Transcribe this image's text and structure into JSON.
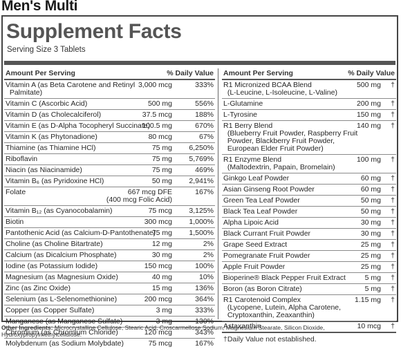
{
  "product_title": "Men's Multi",
  "panel": {
    "title": "Supplement Facts",
    "serving_size": "Serving Size 3 Tablets",
    "header": {
      "amount_per_serving": "Amount Per Serving",
      "daily_value": "% Daily Value"
    }
  },
  "left_rows": [
    {
      "name": "Vitamin A (as Beta Carotene and Retinyl\n  Palmitate)",
      "amount": "3,000 mcg",
      "dv": "333%"
    },
    {
      "name": "Vitamin C (Ascorbic Acid)",
      "amount": "500 mg",
      "dv": "556%"
    },
    {
      "name": "Vitamin D (as Cholecalciferol)",
      "amount": "37.5 mcg",
      "dv": "188%"
    },
    {
      "name": "Vitamin E (as D-Alpha Tocopheryl Succinate)",
      "amount": "100.5 mg",
      "dv": "670%"
    },
    {
      "name": "Vitamin K (as Phytonadione)",
      "amount": "80 mcg",
      "dv": "67%"
    },
    {
      "name": "Thiamine (as Thiamine HCl)",
      "amount": "75 mg",
      "dv": "6,250%"
    },
    {
      "name": "Riboflavin",
      "amount": "75 mg",
      "dv": "5,769%"
    },
    {
      "name": "Niacin (as Niacinamide)",
      "amount": "75 mg",
      "dv": "469%"
    },
    {
      "name": "Vitamin B₆ (as Pyridoxine HCl)",
      "amount": "50 mg",
      "dv": "2,941%"
    },
    {
      "name": "Folate",
      "amount": "667 mcg DFE\n(400 mcg Folic Acid)",
      "dv": "167%"
    },
    {
      "name": "Vitamin B₁₂ (as Cyanocobalamin)",
      "amount": "75 mcg",
      "dv": "3,125%"
    },
    {
      "name": "Biotin",
      "amount": "300 mcg",
      "dv": "1,000%"
    },
    {
      "name": "Pantothenic Acid (as Calcium-D-Pantothenate)",
      "amount": "75 mg",
      "dv": "1,500%"
    },
    {
      "name": "Choline (as Choline Bitartrate)",
      "amount": "12 mg",
      "dv": "2%"
    },
    {
      "name": "Calcium (as Dicalcium Phosphate)",
      "amount": "30 mg",
      "dv": "2%"
    },
    {
      "name": "Iodine (as Potassium Iodide)",
      "amount": "150 mcg",
      "dv": "100%"
    },
    {
      "name": "Magnesium (as Magnesium Oxide)",
      "amount": "40 mg",
      "dv": "10%"
    },
    {
      "name": "Zinc (as Zinc Oxide)",
      "amount": "15 mg",
      "dv": "136%"
    },
    {
      "name": "Selenium (as L-Selenomethionine)",
      "amount": "200 mcg",
      "dv": "364%"
    },
    {
      "name": "Copper (as Copper Sulfate)",
      "amount": "3 mg",
      "dv": "333%"
    },
    {
      "name": "Manganese (as Manganese Sulfate)",
      "amount": "3 mg",
      "dv": "130%"
    },
    {
      "name": "Chromium (as Chromium Chloride)",
      "amount": "120 mcg",
      "dv": "343%"
    },
    {
      "name": "Molybdenum (as Sodium Molybdate)",
      "amount": "75 mcg",
      "dv": "167%"
    }
  ],
  "right_rows": [
    {
      "name": "R1 Micronized BCAA Blend\n  (L-Leucine, L-Isoleucine, L-Valine)",
      "amount": "500 mg",
      "dv": "†"
    },
    {
      "name": "L-Glutamine",
      "amount": "200 mg",
      "dv": "†"
    },
    {
      "name": "L-Tyrosine",
      "amount": "150 mg",
      "dv": "†"
    },
    {
      "name": "R1 Berry Blend\n  (Blueberry Fruit Powder, Raspberry Fruit\n  Powder, Blackberry Fruit Powder,\n  European Elder Fruit Powder)",
      "amount": "140 mg",
      "dv": "†"
    },
    {
      "name": "R1 Enzyme Blend\n  (Maltodextrin, Papain, Bromelain)",
      "amount": "100 mg",
      "dv": "†"
    },
    {
      "name": "Ginkgo Leaf Powder",
      "amount": "60 mg",
      "dv": "†"
    },
    {
      "name": "Asian Ginseng Root Powder",
      "amount": "60 mg",
      "dv": "†"
    },
    {
      "name": "Green Tea Leaf Powder",
      "amount": "50 mg",
      "dv": "†"
    },
    {
      "name": "Black Tea Leaf Powder",
      "amount": "50 mg",
      "dv": "†"
    },
    {
      "name": "Alpha Lipoic Acid",
      "amount": "30 mg",
      "dv": "†"
    },
    {
      "name": "Black Currant Fruit Powder",
      "amount": "30 mg",
      "dv": "†"
    },
    {
      "name": "Grape Seed Extract",
      "amount": "25 mg",
      "dv": "†"
    },
    {
      "name": "Pomegranate Fruit Powder",
      "amount": "25 mg",
      "dv": "†"
    },
    {
      "name": "Apple Fruit Powder",
      "amount": "25 mg",
      "dv": "†"
    },
    {
      "name": "Bioperine® Black Pepper Fruit Extract",
      "amount": "5 mg",
      "dv": "†"
    },
    {
      "name": "Boron (as Boron Citrate)",
      "amount": "5 mg",
      "dv": "†"
    },
    {
      "name": "R1 Carotenoid Complex\n  (Lycopene, Lutein, Alpha Carotene,\n  Cryptoxanthin, Zeaxanthin)",
      "amount": "1.15 mg",
      "dv": "†"
    },
    {
      "name": "Astaxanthin",
      "amount": "10 mcg",
      "dv": "†"
    }
  ],
  "footnote": "†Daily Value not established.",
  "other_ingredients": {
    "label": "Other Ingredients:",
    "text": " Microcrystalline Cellulose, Stearic Acid, Croscarmellose Sodium, Magnesium Stearate, Silicon Dioxide, Hydroxypropylmethylcellulose."
  }
}
